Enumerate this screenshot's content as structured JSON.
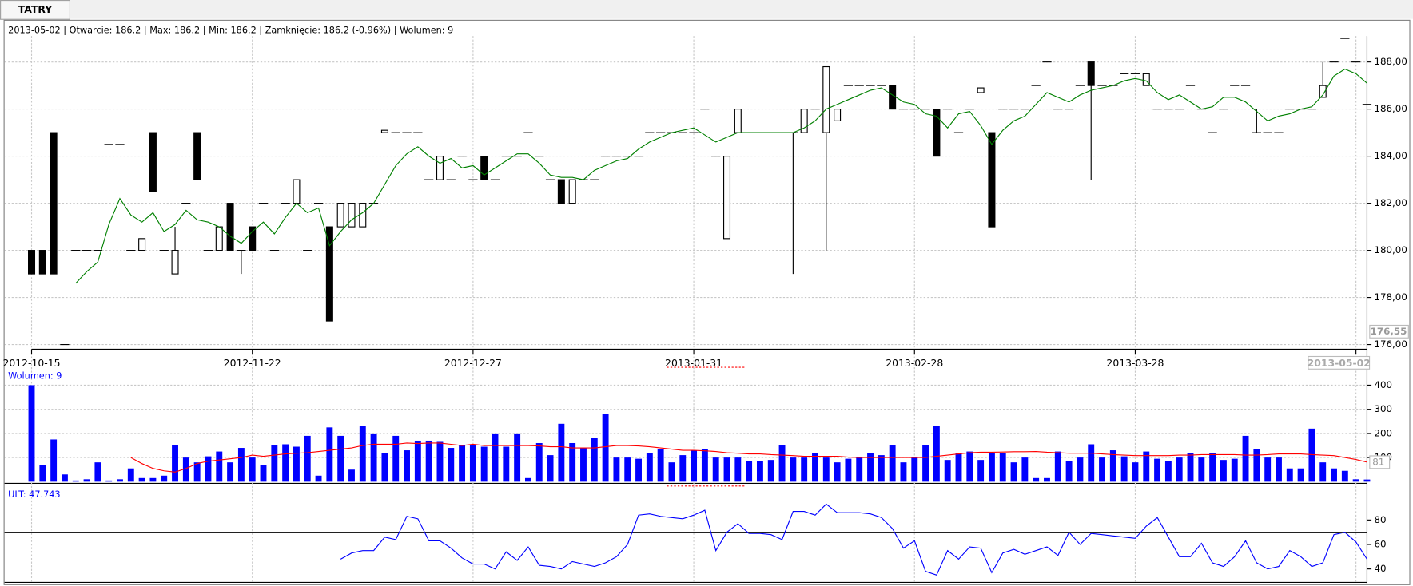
{
  "tab": "TATRY",
  "header": "2013-05-02 | Otwarcie: 186.2 | Max: 186.2 | Min: 186.2 | Zamknięcie: 186.2 (-0.96%)  | Wolumen: 9",
  "chart_data": [
    {
      "type": "candlestick",
      "xlim": [
        -2.45,
        121
      ],
      "xticks": [
        {
          "value": 0,
          "label": "2012-10-15"
        },
        {
          "value": 20,
          "label": "2012-11-22"
        },
        {
          "value": 40,
          "label": "2012-12-27"
        },
        {
          "value": 60,
          "label": "2013-01-31"
        },
        {
          "value": 80,
          "label": "2013-02-28"
        },
        {
          "value": 100,
          "label": "2013-03-28"
        },
        {
          "value": 120,
          "label": "2013-05-02"
        }
      ],
      "ylim": [
        175.8,
        189.6
      ],
      "yticks": [
        {
          "value": 176,
          "label": "176,00"
        },
        {
          "value": 178,
          "label": "178,00"
        },
        {
          "value": 180,
          "label": "180,00"
        },
        {
          "value": 182,
          "label": "182,00"
        },
        {
          "value": 184,
          "label": "184,00"
        },
        {
          "value": 186,
          "label": "186,00"
        },
        {
          "value": 188,
          "label": "188,00"
        }
      ],
      "grid": true,
      "marker": {
        "value": 176.55,
        "label": "176,55"
      },
      "ohlc": [
        [
          180,
          180,
          179,
          179
        ],
        [
          180,
          180,
          179,
          179
        ],
        [
          185,
          185,
          179,
          179
        ],
        [
          176,
          176,
          176,
          176
        ],
        [
          180,
          180,
          180,
          180
        ],
        [
          180,
          180,
          180,
          180
        ],
        [
          180,
          180,
          180,
          180
        ],
        [
          184.5,
          184.5,
          184.5,
          184.5
        ],
        [
          184.5,
          184.5,
          184.5,
          184.5
        ],
        [
          180,
          180,
          180,
          180
        ],
        [
          180,
          180.5,
          180,
          180.5
        ],
        [
          185,
          185,
          182.5,
          182.5
        ],
        [
          180,
          180,
          180,
          180
        ],
        [
          179,
          181,
          179,
          180
        ],
        [
          182,
          182,
          182,
          182
        ],
        [
          185,
          185,
          183,
          183
        ],
        [
          180,
          180,
          180,
          180
        ],
        [
          180,
          181,
          180,
          181
        ],
        [
          182,
          182,
          180,
          180
        ],
        [
          180,
          180,
          179,
          180
        ],
        [
          181,
          181,
          180,
          180
        ],
        [
          182,
          182,
          182,
          182
        ],
        [
          180,
          180,
          180,
          180
        ],
        [
          182,
          182,
          182,
          182
        ],
        [
          182,
          183,
          182,
          183
        ],
        [
          180,
          180,
          180,
          180
        ],
        [
          182,
          182,
          182,
          182
        ],
        [
          181,
          181,
          177,
          177
        ],
        [
          181,
          182,
          181,
          182
        ],
        [
          181,
          182,
          181,
          182
        ],
        [
          181,
          182,
          181,
          182
        ],
        [
          182,
          182,
          182,
          182
        ],
        [
          185,
          185.1,
          185,
          185.1
        ],
        [
          185,
          185,
          185,
          185
        ],
        [
          185,
          185,
          185,
          185
        ],
        [
          185,
          185,
          185,
          185
        ],
        [
          183,
          183,
          183,
          183
        ],
        [
          183,
          184,
          183,
          184
        ],
        [
          183,
          183,
          183,
          183
        ],
        [
          184,
          184,
          184,
          184
        ],
        [
          183,
          183,
          183,
          183
        ],
        [
          184,
          184,
          183,
          183
        ],
        [
          183,
          183,
          183,
          183
        ],
        [
          184,
          184,
          184,
          184
        ],
        [
          184,
          184,
          184,
          184
        ],
        [
          185,
          185,
          185,
          185
        ],
        [
          184,
          184,
          184,
          184
        ],
        [
          183,
          183,
          183,
          183
        ],
        [
          183,
          183,
          182,
          182
        ],
        [
          182,
          183,
          182,
          183
        ],
        [
          183,
          183,
          183,
          183
        ],
        [
          183,
          183,
          183,
          183
        ],
        [
          184,
          184,
          184,
          184
        ],
        [
          184,
          184,
          184,
          184
        ],
        [
          184,
          184,
          184,
          184
        ],
        [
          184,
          184,
          184,
          184
        ],
        [
          185,
          185,
          185,
          185
        ],
        [
          185,
          185,
          185,
          185
        ],
        [
          185,
          185,
          185,
          185
        ],
        [
          185,
          185,
          185,
          185
        ],
        [
          185,
          185,
          185,
          185
        ],
        [
          186,
          186,
          186,
          186
        ],
        [
          184,
          184,
          184,
          184
        ],
        [
          180.5,
          184,
          180.5,
          184
        ],
        [
          185,
          186,
          185,
          186
        ],
        [
          185,
          185,
          185,
          185
        ],
        [
          185,
          185,
          185,
          185
        ],
        [
          185,
          185,
          185,
          185
        ],
        [
          185,
          185,
          185,
          185
        ],
        [
          185,
          185,
          179,
          185
        ],
        [
          185,
          186,
          185,
          186
        ],
        [
          186,
          186,
          186,
          186
        ],
        [
          185,
          187.8,
          180,
          187.8
        ],
        [
          185.5,
          186,
          185.5,
          186
        ],
        [
          187,
          187,
          187,
          187
        ],
        [
          187,
          187,
          187,
          187
        ],
        [
          187,
          187,
          187,
          187
        ],
        [
          187,
          187,
          187,
          187
        ],
        [
          187,
          187,
          186,
          186
        ],
        [
          186,
          186,
          186,
          186
        ],
        [
          186,
          186,
          186,
          186
        ],
        [
          186,
          186,
          186,
          186
        ],
        [
          186,
          186,
          184,
          184
        ],
        [
          186,
          186,
          186,
          186
        ],
        [
          185,
          185,
          185,
          185
        ],
        [
          186,
          186,
          186,
          186
        ],
        [
          186.7,
          186.9,
          186.7,
          186.9
        ],
        [
          185,
          185,
          181,
          181
        ],
        [
          186,
          186,
          186,
          186
        ],
        [
          186,
          186,
          186,
          186
        ],
        [
          186,
          186,
          186,
          186
        ],
        [
          187,
          187,
          187,
          187
        ],
        [
          188,
          188,
          188,
          188
        ],
        [
          186,
          186,
          186,
          186
        ],
        [
          186,
          186,
          186,
          186
        ],
        [
          187,
          187,
          187,
          187
        ],
        [
          188,
          188,
          183,
          187
        ],
        [
          187,
          187,
          187,
          187
        ],
        [
          187,
          187,
          187,
          187
        ],
        [
          187.5,
          187.5,
          187.5,
          187.5
        ],
        [
          187.5,
          187.5,
          187.5,
          187.5
        ],
        [
          187,
          187.5,
          187,
          187.5
        ],
        [
          186,
          186,
          186,
          186
        ],
        [
          186,
          186,
          186,
          186
        ],
        [
          186,
          186,
          186,
          186
        ],
        [
          187,
          187,
          187,
          187
        ],
        [
          186,
          186,
          186,
          186
        ],
        [
          185,
          185,
          185,
          185
        ],
        [
          186,
          186,
          186,
          186
        ],
        [
          187,
          187,
          187,
          187
        ],
        [
          187,
          187,
          187,
          187
        ],
        [
          185,
          186,
          185,
          185
        ],
        [
          185,
          185,
          185,
          185
        ],
        [
          185,
          185,
          185,
          185
        ],
        [
          186,
          186,
          186,
          186
        ],
        [
          186,
          186,
          186,
          186
        ],
        [
          186,
          186,
          186,
          186
        ],
        [
          186.5,
          188,
          186.5,
          187
        ],
        [
          188,
          188,
          188,
          188
        ],
        [
          189,
          189,
          189,
          189
        ],
        [
          188,
          188,
          188,
          188
        ],
        [
          186.2,
          186.2,
          186.2,
          186.2
        ]
      ],
      "up_color": "#ffffff",
      "down_color": "#000000",
      "ma": {
        "color": "#008000",
        "values": [
          null,
          null,
          null,
          null,
          178.6,
          179.1,
          179.5,
          181.1,
          182.2,
          181.5,
          181.2,
          181.6,
          180.8,
          181.1,
          181.7,
          181.3,
          181.2,
          181.0,
          180.6,
          180.3,
          180.8,
          181.2,
          180.7,
          181.4,
          182.0,
          181.6,
          181.8,
          180.2,
          180.8,
          181.3,
          181.6,
          182.0,
          182.8,
          183.6,
          184.1,
          184.4,
          184.0,
          183.7,
          183.9,
          183.5,
          183.6,
          183.2,
          183.5,
          183.8,
          184.1,
          184.1,
          183.7,
          183.2,
          183.1,
          183.1,
          183.0,
          183.4,
          183.6,
          183.8,
          183.9,
          184.3,
          184.6,
          184.8,
          185.0,
          185.1,
          185.2,
          184.9,
          184.6,
          184.8,
          185.0,
          185.0,
          185.0,
          185.0,
          185.0,
          185.0,
          185.2,
          185.5,
          186.0,
          186.2,
          186.4,
          186.6,
          186.8,
          186.9,
          186.6,
          186.3,
          186.2,
          185.8,
          185.7,
          185.2,
          185.8,
          185.9,
          185.3,
          184.5,
          185.1,
          185.5,
          185.7,
          186.2,
          186.7,
          186.5,
          186.3,
          186.6,
          186.8,
          186.9,
          187.0,
          187.2,
          187.3,
          187.2,
          186.7,
          186.4,
          186.6,
          186.3,
          186.0,
          186.1,
          186.5,
          186.5,
          186.3,
          185.9,
          185.5,
          185.7,
          185.8,
          186.0,
          186.1,
          186.6,
          187.4,
          187.7,
          187.5,
          187.1
        ]
      }
    },
    {
      "type": "bar",
      "label": "Wolumen: 9",
      "color": "#0000ff",
      "ylim": [
        -7,
        463
      ],
      "yticks": [
        100,
        200,
        300,
        400
      ],
      "grid": true,
      "values": [
        400,
        70,
        175,
        30,
        5,
        10,
        80,
        5,
        10,
        55,
        15,
        15,
        25,
        150,
        100,
        80,
        105,
        125,
        80,
        140,
        100,
        70,
        150,
        155,
        145,
        190,
        25,
        225,
        190,
        50,
        230,
        200,
        120,
        190,
        130,
        170,
        170,
        165,
        140,
        150,
        150,
        145,
        200,
        145,
        200,
        15,
        160,
        110,
        240,
        160,
        140,
        180,
        280,
        100,
        100,
        95,
        120,
        135,
        80,
        110,
        130,
        135,
        100,
        100,
        100,
        85,
        85,
        90,
        150,
        100,
        100,
        120,
        100,
        80,
        95,
        100,
        120,
        110,
        150,
        80,
        100,
        150,
        230,
        90,
        120,
        125,
        90,
        120,
        120,
        80,
        100,
        15,
        15,
        125,
        85,
        100,
        155,
        100,
        130,
        105,
        80,
        125,
        95,
        85,
        100,
        120,
        100,
        120,
        90,
        95,
        190,
        135,
        100,
        100,
        55,
        55,
        220,
        80,
        55,
        45,
        10,
        9
      ],
      "ma": {
        "color": "#ff0000",
        "values": [
          null,
          null,
          null,
          null,
          null,
          null,
          null,
          null,
          null,
          100,
          75,
          55,
          45,
          40,
          55,
          75,
          85,
          90,
          95,
          100,
          110,
          105,
          110,
          115,
          118,
          120,
          125,
          130,
          135,
          140,
          150,
          155,
          155,
          155,
          160,
          158,
          160,
          160,
          155,
          150,
          155,
          150,
          150,
          150,
          150,
          150,
          148,
          145,
          145,
          140,
          140,
          140,
          145,
          150,
          150,
          148,
          145,
          140,
          135,
          130,
          130,
          128,
          125,
          120,
          118,
          115,
          115,
          112,
          110,
          108,
          105,
          105,
          105,
          105,
          102,
          100,
          100,
          100,
          100,
          100,
          100,
          100,
          105,
          110,
          115,
          120,
          122,
          122,
          123,
          124,
          124,
          125,
          122,
          120,
          118,
          118,
          118,
          115,
          112,
          110,
          108,
          108,
          108,
          108,
          110,
          110,
          112,
          112,
          112,
          112,
          110,
          110,
          112,
          115,
          115,
          115,
          112,
          110,
          108,
          100,
          92,
          81
        ]
      }
    },
    {
      "type": "line",
      "label": "ULT: 47.743",
      "color": "#0000ff",
      "ylim": [
        29,
        107
      ],
      "yticks": [
        40,
        60,
        80
      ],
      "level": 70,
      "values": [
        null,
        null,
        null,
        null,
        null,
        null,
        null,
        null,
        null,
        null,
        null,
        null,
        null,
        null,
        null,
        null,
        null,
        null,
        null,
        null,
        null,
        null,
        null,
        null,
        null,
        null,
        null,
        null,
        48,
        53,
        55,
        55,
        66,
        64,
        83,
        81,
        63,
        63,
        57,
        49,
        44,
        44,
        40,
        54,
        47,
        58,
        43,
        42,
        40,
        46,
        44,
        42,
        45,
        50,
        60,
        84,
        85,
        83,
        82,
        81,
        84,
        88,
        55,
        70,
        77,
        69,
        69,
        68,
        64,
        87,
        87,
        84,
        93,
        86,
        86,
        86,
        85,
        82,
        73,
        57,
        63,
        38,
        35,
        55,
        48,
        58,
        57,
        37,
        53,
        56,
        52,
        55,
        58,
        51,
        70,
        60,
        69,
        68,
        67,
        66,
        65,
        75,
        82,
        66,
        50,
        50,
        61,
        45,
        42,
        50,
        63,
        45,
        40,
        42,
        55,
        50,
        42,
        45,
        68,
        70,
        62,
        48
      ]
    }
  ]
}
